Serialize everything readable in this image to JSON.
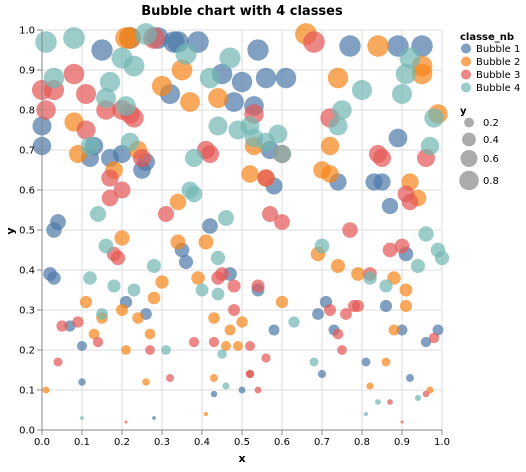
{
  "chart_data": {
    "type": "scatter",
    "title": "Bubble chart with 4 classes",
    "xlabel": "x",
    "ylabel": "y",
    "xlim": [
      0,
      1
    ],
    "ylim": [
      0,
      1
    ],
    "x_ticks": [
      "0.0",
      "0.1",
      "0.2",
      "0.3",
      "0.4",
      "0.5",
      "0.6",
      "0.7",
      "0.8",
      "0.9",
      "1.0"
    ],
    "y_ticks": [
      "0.0",
      "0.1",
      "0.2",
      "0.3",
      "0.4",
      "0.5",
      "0.6",
      "0.7",
      "0.8",
      "0.9",
      "1.0"
    ],
    "grid": true,
    "legend_placement": "right",
    "color_legend": {
      "title": "classe_nb",
      "entries": [
        {
          "name": "Bubble 1",
          "color": "#4c78a8"
        },
        {
          "name": "Bubble 2",
          "color": "#f58518"
        },
        {
          "name": "Bubble 3",
          "color": "#e45756"
        },
        {
          "name": "Bubble 4",
          "color": "#72b7b2"
        }
      ]
    },
    "size_legend": {
      "title": "y",
      "entries": [
        "0.2",
        "0.4",
        "0.6",
        "0.8"
      ]
    },
    "size_field": "y",
    "opacity": 0.7,
    "series": [
      {
        "name": "Bubble 1",
        "color": "#4c78a8",
        "points": [
          [
            0.0,
            0.76
          ],
          [
            0.0,
            0.71
          ],
          [
            0.02,
            0.39
          ],
          [
            0.03,
            0.38
          ],
          [
            0.03,
            0.5
          ],
          [
            0.04,
            0.52
          ],
          [
            0.07,
            0.26
          ],
          [
            0.1,
            0.12
          ],
          [
            0.1,
            0.21
          ],
          [
            0.12,
            0.68
          ],
          [
            0.13,
            0.71
          ],
          [
            0.15,
            0.95
          ],
          [
            0.17,
            0.68
          ],
          [
            0.2,
            0.69
          ],
          [
            0.21,
            0.32
          ],
          [
            0.22,
            0.98
          ],
          [
            0.25,
            0.65
          ],
          [
            0.26,
            0.67
          ],
          [
            0.26,
            0.29
          ],
          [
            0.28,
            0.03
          ],
          [
            0.29,
            0.98
          ],
          [
            0.32,
            0.84
          ],
          [
            0.33,
            0.97
          ],
          [
            0.34,
            0.97
          ],
          [
            0.35,
            0.45
          ],
          [
            0.36,
            0.42
          ],
          [
            0.39,
            0.97
          ],
          [
            0.42,
            0.51
          ],
          [
            0.43,
            0.09
          ],
          [
            0.45,
            0.89
          ],
          [
            0.47,
            0.39
          ],
          [
            0.48,
            0.82
          ],
          [
            0.5,
            0.87
          ],
          [
            0.5,
            0.1
          ],
          [
            0.53,
            0.81
          ],
          [
            0.54,
            0.35
          ],
          [
            0.54,
            0.95
          ],
          [
            0.56,
            0.88
          ],
          [
            0.57,
            0.7
          ],
          [
            0.58,
            0.61
          ],
          [
            0.58,
            0.25
          ],
          [
            0.61,
            0.88
          ],
          [
            0.69,
            0.29
          ],
          [
            0.7,
            0.14
          ],
          [
            0.71,
            0.32
          ],
          [
            0.73,
            0.25
          ],
          [
            0.74,
            0.62
          ],
          [
            0.77,
            0.96
          ],
          [
            0.81,
            0.17
          ],
          [
            0.83,
            0.62
          ],
          [
            0.85,
            0.62
          ],
          [
            0.86,
            0.31
          ],
          [
            0.87,
            0.56
          ],
          [
            0.89,
            0.96
          ],
          [
            0.89,
            0.73
          ],
          [
            0.9,
            0.25
          ],
          [
            0.91,
            0.44
          ],
          [
            0.92,
            0.13
          ],
          [
            0.95,
            0.96
          ],
          [
            0.96,
            0.22
          ],
          [
            0.99,
            0.25
          ]
        ]
      },
      {
        "name": "Bubble 2",
        "color": "#f58518",
        "points": [
          [
            0.01,
            0.1
          ],
          [
            0.08,
            0.77
          ],
          [
            0.09,
            0.69
          ],
          [
            0.11,
            0.32
          ],
          [
            0.13,
            0.24
          ],
          [
            0.15,
            0.28
          ],
          [
            0.18,
            0.65
          ],
          [
            0.2,
            0.48
          ],
          [
            0.2,
            0.3
          ],
          [
            0.21,
            0.2
          ],
          [
            0.21,
            0.98
          ],
          [
            0.22,
            0.98
          ],
          [
            0.24,
            0.7
          ],
          [
            0.24,
            0.28
          ],
          [
            0.26,
            0.12
          ],
          [
            0.27,
            0.24
          ],
          [
            0.28,
            0.33
          ],
          [
            0.3,
            0.86
          ],
          [
            0.3,
            0.37
          ],
          [
            0.34,
            0.57
          ],
          [
            0.34,
            0.47
          ],
          [
            0.35,
            0.9
          ],
          [
            0.37,
            0.82
          ],
          [
            0.39,
            0.38
          ],
          [
            0.41,
            0.47
          ],
          [
            0.41,
            0.04
          ],
          [
            0.43,
            0.13
          ],
          [
            0.43,
            0.28
          ],
          [
            0.44,
            0.83
          ],
          [
            0.46,
            0.21
          ],
          [
            0.47,
            0.25
          ],
          [
            0.49,
            0.21
          ],
          [
            0.5,
            0.27
          ],
          [
            0.52,
            0.64
          ],
          [
            0.53,
            0.71
          ],
          [
            0.56,
            0.63
          ],
          [
            0.6,
            0.32
          ],
          [
            0.66,
            0.99
          ],
          [
            0.69,
            0.44
          ],
          [
            0.7,
            0.65
          ],
          [
            0.72,
            0.64
          ],
          [
            0.72,
            0.71
          ],
          [
            0.74,
            0.41
          ],
          [
            0.74,
            0.88
          ],
          [
            0.79,
            0.39
          ],
          [
            0.82,
            0.11
          ],
          [
            0.84,
            0.96
          ],
          [
            0.86,
            0.17
          ],
          [
            0.88,
            0.25
          ],
          [
            0.88,
            0.38
          ],
          [
            0.91,
            0.35
          ],
          [
            0.91,
            0.31
          ],
          [
            0.92,
            0.62
          ],
          [
            0.94,
            0.58
          ],
          [
            0.95,
            0.91
          ],
          [
            0.95,
            0.89
          ],
          [
            0.97,
            0.1
          ],
          [
            0.99,
            0.79
          ]
        ]
      },
      {
        "name": "Bubble 3",
        "color": "#e45756",
        "points": [
          [
            0.0,
            0.85
          ],
          [
            0.01,
            0.8
          ],
          [
            0.03,
            0.85
          ],
          [
            0.04,
            0.17
          ],
          [
            0.05,
            0.26
          ],
          [
            0.08,
            0.89
          ],
          [
            0.09,
            0.27
          ],
          [
            0.11,
            0.75
          ],
          [
            0.11,
            0.84
          ],
          [
            0.14,
            0.22
          ],
          [
            0.16,
            0.8
          ],
          [
            0.17,
            0.63
          ],
          [
            0.17,
            0.58
          ],
          [
            0.18,
            0.44
          ],
          [
            0.19,
            0.43
          ],
          [
            0.2,
            0.8
          ],
          [
            0.2,
            0.6
          ],
          [
            0.21,
            0.02
          ],
          [
            0.22,
            0.79
          ],
          [
            0.23,
            0.78
          ],
          [
            0.25,
            0.68
          ],
          [
            0.27,
            0.2
          ],
          [
            0.28,
            0.98
          ],
          [
            0.31,
            0.54
          ],
          [
            0.32,
            0.13
          ],
          [
            0.38,
            0.22
          ],
          [
            0.41,
            0.7
          ],
          [
            0.42,
            0.69
          ],
          [
            0.43,
            0.22
          ],
          [
            0.44,
            0.38
          ],
          [
            0.45,
            0.39
          ],
          [
            0.48,
            0.36
          ],
          [
            0.48,
            0.3
          ],
          [
            0.52,
            0.14
          ],
          [
            0.52,
            0.14
          ],
          [
            0.52,
            0.21
          ],
          [
            0.53,
            0.79
          ],
          [
            0.54,
            0.1
          ],
          [
            0.54,
            0.36
          ],
          [
            0.56,
            0.18
          ],
          [
            0.56,
            0.63
          ],
          [
            0.57,
            0.54
          ],
          [
            0.6,
            0.69
          ],
          [
            0.6,
            0.52
          ],
          [
            0.68,
            0.97
          ],
          [
            0.72,
            0.3
          ],
          [
            0.72,
            0.78
          ],
          [
            0.74,
            0.24
          ],
          [
            0.75,
            0.2
          ],
          [
            0.76,
            0.29
          ],
          [
            0.77,
            0.5
          ],
          [
            0.78,
            0.31
          ],
          [
            0.79,
            0.31
          ],
          [
            0.82,
            0.39
          ],
          [
            0.84,
            0.69
          ],
          [
            0.85,
            0.68
          ],
          [
            0.87,
            0.07
          ],
          [
            0.87,
            0.45
          ],
          [
            0.9,
            0.02
          ],
          [
            0.9,
            0.46
          ],
          [
            0.91,
            0.59
          ],
          [
            0.92,
            0.57
          ],
          [
            0.96,
            0.68
          ],
          [
            0.96,
            0.09
          ],
          [
            0.98,
            0.23
          ]
        ]
      },
      {
        "name": "Bubble 4",
        "color": "#72b7b2",
        "points": [
          [
            0.01,
            0.97
          ],
          [
            0.03,
            0.88
          ],
          [
            0.08,
            0.98
          ],
          [
            0.1,
            0.03
          ],
          [
            0.12,
            0.38
          ],
          [
            0.12,
            0.71
          ],
          [
            0.14,
            0.54
          ],
          [
            0.15,
            0.29
          ],
          [
            0.16,
            0.46
          ],
          [
            0.16,
            0.83
          ],
          [
            0.17,
            0.87
          ],
          [
            0.18,
            0.36
          ],
          [
            0.2,
            0.93
          ],
          [
            0.21,
            0.81
          ],
          [
            0.22,
            0.72
          ],
          [
            0.23,
            0.91
          ],
          [
            0.23,
            0.35
          ],
          [
            0.26,
            0.99
          ],
          [
            0.28,
            0.41
          ],
          [
            0.31,
            0.2
          ],
          [
            0.36,
            0.94
          ],
          [
            0.37,
            0.6
          ],
          [
            0.38,
            0.68
          ],
          [
            0.38,
            0.59
          ],
          [
            0.4,
            0.35
          ],
          [
            0.42,
            0.88
          ],
          [
            0.44,
            0.76
          ],
          [
            0.44,
            0.43
          ],
          [
            0.44,
            0.34
          ],
          [
            0.45,
            0.19
          ],
          [
            0.46,
            0.53
          ],
          [
            0.46,
            0.11
          ],
          [
            0.47,
            0.93
          ],
          [
            0.49,
            0.75
          ],
          [
            0.52,
            0.76
          ],
          [
            0.53,
            0.73
          ],
          [
            0.56,
            0.72
          ],
          [
            0.59,
            0.74
          ],
          [
            0.6,
            0.69
          ],
          [
            0.63,
            0.27
          ],
          [
            0.68,
            0.17
          ],
          [
            0.7,
            0.46
          ],
          [
            0.74,
            0.76
          ],
          [
            0.75,
            0.8
          ],
          [
            0.8,
            0.85
          ],
          [
            0.81,
            0.04
          ],
          [
            0.82,
            0.38
          ],
          [
            0.84,
            0.07
          ],
          [
            0.86,
            0.36
          ],
          [
            0.9,
            0.84
          ],
          [
            0.91,
            0.89
          ],
          [
            0.92,
            0.93
          ],
          [
            0.94,
            0.41
          ],
          [
            0.94,
            0.08
          ],
          [
            0.96,
            0.49
          ],
          [
            0.97,
            0.71
          ],
          [
            0.98,
            0.78
          ],
          [
            0.99,
            0.45
          ],
          [
            1.0,
            0.43
          ]
        ]
      }
    ]
  }
}
